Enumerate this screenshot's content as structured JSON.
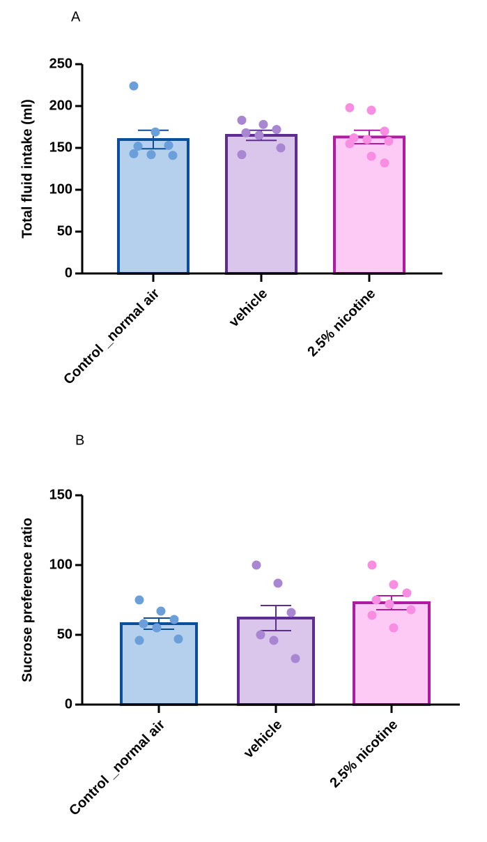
{
  "chart_data": [
    {
      "type": "bar",
      "panel": "A",
      "ylabel": "Total fluid intake (ml)",
      "categories": [
        "Control _normal air",
        "vehicle",
        "2.5% nicotine"
      ],
      "values": [
        160,
        165,
        163
      ],
      "errors": [
        11,
        6,
        8
      ],
      "points": [
        [
          224,
          169,
          153,
          152,
          142,
          141,
          143
        ],
        [
          183,
          178,
          172,
          168,
          165,
          150,
          142
        ],
        [
          198,
          195,
          170,
          162,
          160,
          158,
          155,
          140,
          132
        ]
      ],
      "colors": [
        "#b5d0ed",
        "#dac6ea",
        "#fdc9f5"
      ],
      "edge_colors": [
        "#0b4f9b",
        "#5e2d92",
        "#b01ba1"
      ],
      "point_colors": [
        "#6b9fd9",
        "#a886d1",
        "#f78ee1"
      ],
      "ylim": [
        0,
        250
      ],
      "yticks": [
        0,
        50,
        100,
        150,
        200,
        250
      ]
    },
    {
      "type": "bar",
      "panel": "B",
      "ylabel": "Sucrose preference ratio",
      "categories": [
        "Control _normal air",
        "vehicle",
        "2.5% nicotine"
      ],
      "values": [
        58,
        62,
        73
      ],
      "errors": [
        4,
        9,
        5
      ],
      "points": [
        [
          75,
          67,
          61,
          58,
          55,
          47,
          46
        ],
        [
          100,
          87,
          66,
          50,
          46,
          33
        ],
        [
          100,
          86,
          80,
          75,
          72,
          68,
          64,
          55
        ]
      ],
      "colors": [
        "#b5d0ed",
        "#dac6ea",
        "#fdc9f5"
      ],
      "edge_colors": [
        "#0b4f9b",
        "#5e2d92",
        "#b01ba1"
      ],
      "point_colors": [
        "#6b9fd9",
        "#a886d1",
        "#f78ee1"
      ],
      "ylim": [
        0,
        150
      ],
      "yticks": [
        0,
        50,
        100,
        150
      ]
    }
  ]
}
